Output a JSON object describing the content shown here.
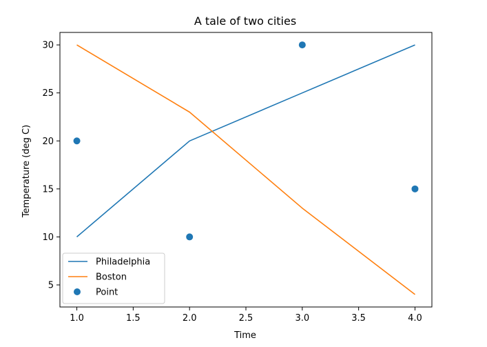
{
  "chart_data": {
    "type": "line",
    "title": "A tale of two cities",
    "xlabel": "Time",
    "ylabel": "Temperature (deg C)",
    "xlim": [
      0.85,
      4.15
    ],
    "ylim": [
      2.7,
      31.3
    ],
    "xticks": [
      1.0,
      1.5,
      2.0,
      2.5,
      3.0,
      3.5,
      4.0
    ],
    "xtick_labels": [
      "1.0",
      "1.5",
      "2.0",
      "2.5",
      "3.0",
      "3.5",
      "4.0"
    ],
    "yticks": [
      5,
      10,
      15,
      20,
      25,
      30
    ],
    "ytick_labels": [
      "5",
      "10",
      "15",
      "20",
      "25",
      "30"
    ],
    "grid": false,
    "legend_position": "lower-left",
    "series": [
      {
        "name": "Philadelphia",
        "kind": "line",
        "color": "#1f77b4",
        "x": [
          1,
          2,
          3,
          4
        ],
        "y": [
          10,
          20,
          25,
          30
        ]
      },
      {
        "name": "Boston",
        "kind": "line",
        "color": "#ff7f0e",
        "x": [
          1,
          2,
          3,
          4
        ],
        "y": [
          30,
          23,
          13,
          4
        ]
      },
      {
        "name": "Point",
        "kind": "scatter",
        "color": "#1f77b4",
        "x": [
          1,
          2,
          3,
          4
        ],
        "y": [
          20,
          10,
          30,
          15
        ]
      }
    ]
  }
}
